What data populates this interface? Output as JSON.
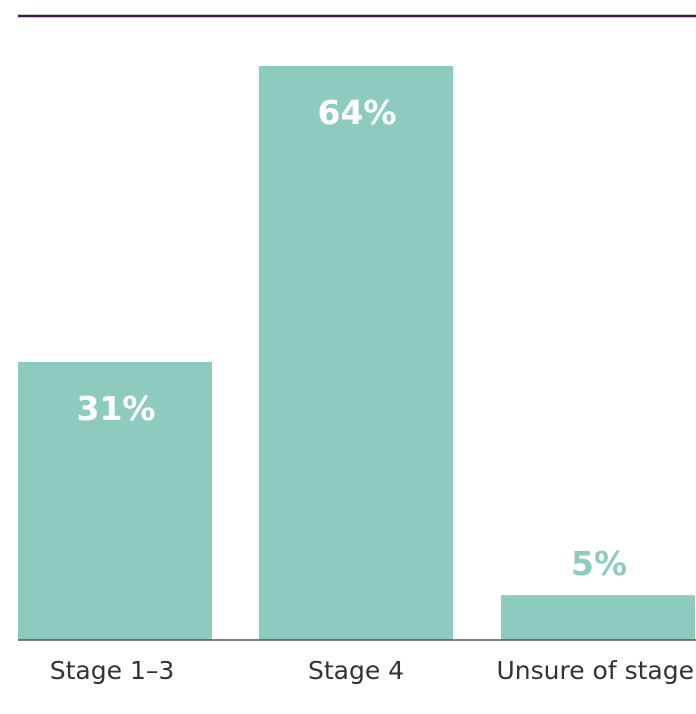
{
  "chart_data": {
    "type": "bar",
    "categories": [
      "Stage 1–3",
      "Stage 4",
      "Unsure of stage"
    ],
    "values": [
      31,
      64,
      5
    ],
    "data_labels": [
      "31%",
      "64%",
      "5%"
    ],
    "ylim": [
      0,
      64
    ],
    "grid": false,
    "legend": "none"
  },
  "colors": {
    "bar": "#8ecbbf",
    "outside_label": "#8ecbbf",
    "inside_label": "#ffffff",
    "top_rule": "#3a1a4a",
    "baseline": "#555555",
    "category_text": "#333333"
  }
}
